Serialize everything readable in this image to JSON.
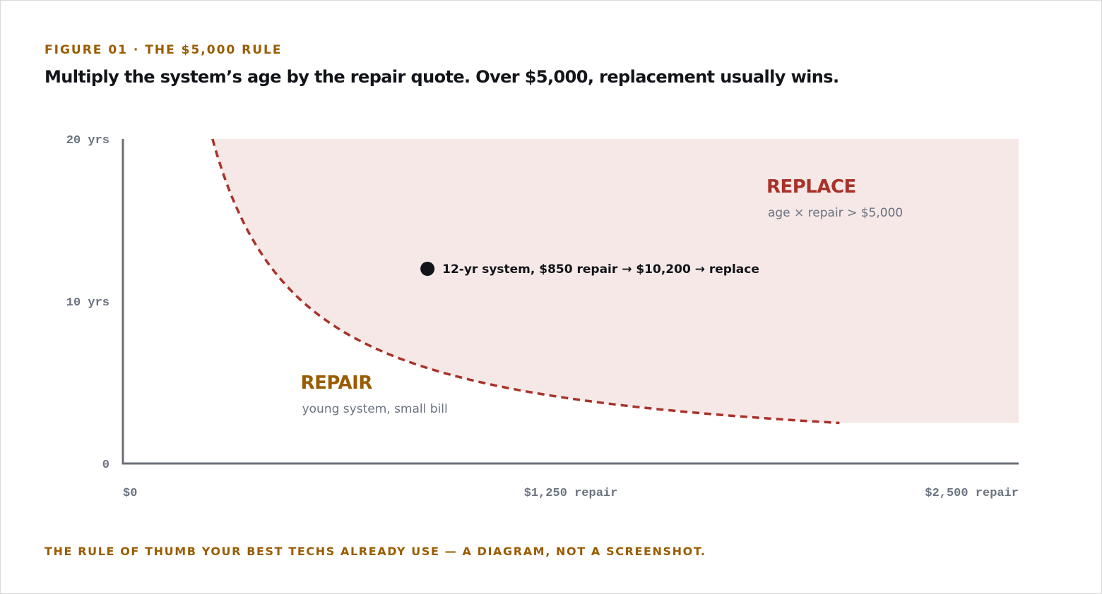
{
  "header": {
    "eyebrow": "FIGURE 01 · THE $5,000 RULE",
    "headline": "Multiply the system’s age by the repair quote. Over $5,000, replacement usually wins."
  },
  "footer": {
    "note": "THE RULE OF THUMB YOUR BEST TECHS ALREADY USE — A DIAGRAM, NOT A SCREENSHOT."
  },
  "colors": {
    "accent_gold": "#9a5c00",
    "replace_red": "#a8322a",
    "replace_fill": "#f5e8e6",
    "axis": "#6b6f76",
    "muted_text": "#6b7280",
    "ink": "#111418"
  },
  "chart_data": {
    "type": "area",
    "title": "",
    "xlabel": "",
    "ylabel": "",
    "xlim": [
      0,
      2500
    ],
    "ylim": [
      0,
      20
    ],
    "x_ticks": [
      {
        "value": 0,
        "label": "$0"
      },
      {
        "value": 1250,
        "label": "$1,250 repair"
      },
      {
        "value": 2500,
        "label": "$2,500 repair"
      }
    ],
    "y_ticks": [
      {
        "value": 0,
        "label": "0"
      },
      {
        "value": 10,
        "label": "10 yrs"
      },
      {
        "value": 20,
        "label": "20 yrs"
      }
    ],
    "threshold": {
      "product": 5000,
      "x_range": [
        250,
        2000
      ],
      "style": "dashed"
    },
    "regions": [
      {
        "id": "replace",
        "title": "REPLACE",
        "subtitle": "age × repair > $5,000",
        "x": 1800,
        "y": 16.7,
        "color": "#a8322a"
      },
      {
        "id": "repair",
        "title": "REPAIR",
        "subtitle": "young system, small bill",
        "x": 500,
        "y": 4.6,
        "color": "#9a5c00"
      }
    ],
    "points": [
      {
        "x": 850,
        "y": 12,
        "label": "12-yr system, $850 repair → $10,200 → replace"
      }
    ],
    "grid": false,
    "legend": "none"
  }
}
